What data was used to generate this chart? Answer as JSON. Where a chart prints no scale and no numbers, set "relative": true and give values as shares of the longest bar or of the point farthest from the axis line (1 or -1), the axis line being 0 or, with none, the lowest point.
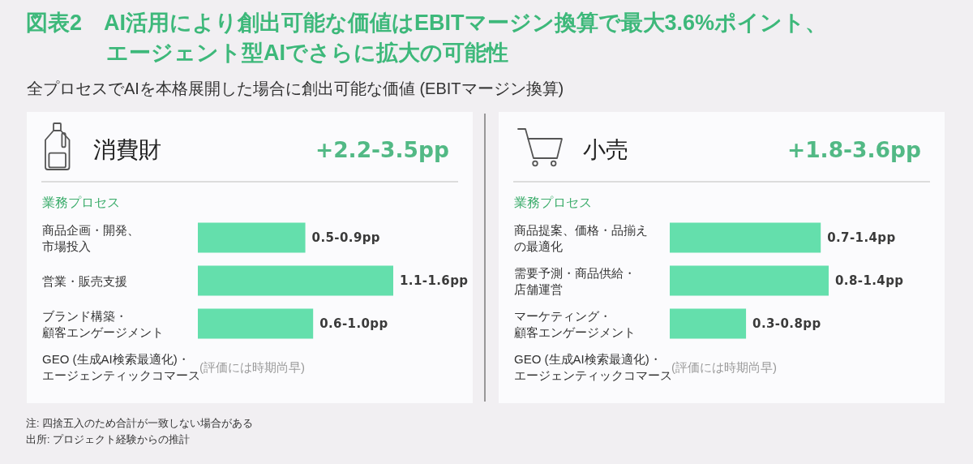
{
  "chart_data": [
    {
      "type": "other",
      "title": "図表2　AI活用により創出可能な価値はEBITマージン換算で最大3.6%ポイント、エージェント型AIでさらに拡大の可能性",
      "subtitle": "全プロセスでAIを本格展開した場合に創出可能な価値 (EBITマージン換算)",
      "annotations": [
        "注: 四捨五入のため合計が一致しない場合がある",
        "出所: プロジェクト経験からの推計"
      ]
    },
    {
      "type": "bar",
      "orientation": "horizontal",
      "relative": true,
      "title": "消費財",
      "subtitle": "+2.2-3.5pp",
      "ylabel": "業務プロセス",
      "categories": [
        "商品企画・開発、市場投入",
        "営業・販売支援",
        "ブランド構築・顧客エンゲージメント",
        "GEO (生成AI検索最適化)・エージェンティックコマース"
      ],
      "values": [
        0.55,
        1,
        0.59,
        null
      ],
      "color": "#64dfac",
      "annotations": [
        "0.5-0.9pp",
        "1.1-1.6pp",
        "0.6-1.0pp",
        "(評価には時期尚早)"
      ]
    },
    {
      "type": "bar",
      "orientation": "horizontal",
      "relative": true,
      "title": "小売",
      "subtitle": "+1.8-3.6pp",
      "ylabel": "業務プロセス",
      "categories": [
        "商品提案、価格・品揃えの最適化",
        "需要予測・商品供給・店舗運営",
        "マーケティング・顧客エンゲージメント",
        "GEO (生成AI検索最適化)・エージェンティックコマース"
      ],
      "values": [
        0.95,
        1,
        0.48,
        null
      ],
      "color": "#64dfac",
      "annotations": [
        "0.7-1.4pp",
        "0.8-1.4pp",
        "0.3-0.8pp",
        "(評価には時期尚早)"
      ]
    }
  ]
}
